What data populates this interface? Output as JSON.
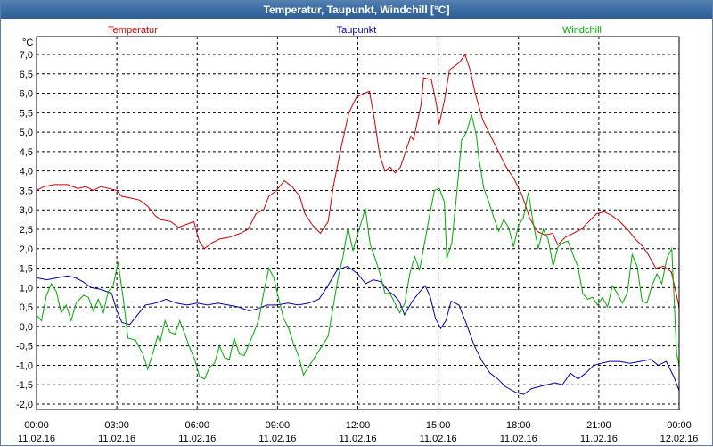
{
  "window": {
    "title": "Temperatur, Taupunkt, Windchill [°C]"
  },
  "chart_data": {
    "type": "line",
    "title": "Temperatur, Taupunkt, Windchill [°C]",
    "ylabel": "°C",
    "ylim": [
      -2.0,
      7.0
    ],
    "ytick_step": 0.5,
    "ytick_labels": [
      "7,0",
      "6,5",
      "6,0",
      "5,5",
      "5,0",
      "4,5",
      "4,0",
      "3,5",
      "3,0",
      "2,5",
      "2,0",
      "1,5",
      "1,0",
      "0,5",
      "0,0",
      "-0,5",
      "-1,0",
      "-1,5",
      "-2,0"
    ],
    "xlim_hours": [
      0,
      24
    ],
    "x_ticks": [
      {
        "time": "00:00",
        "date": "11.02.16"
      },
      {
        "time": "03:00",
        "date": "11.02.16"
      },
      {
        "time": "06:00",
        "date": "11.02.16"
      },
      {
        "time": "09:00",
        "date": "11.02.16"
      },
      {
        "time": "12:00",
        "date": "11.02.16"
      },
      {
        "time": "15:00",
        "date": "11.02.16"
      },
      {
        "time": "18:00",
        "date": "11.02.16"
      },
      {
        "time": "21:00",
        "date": "11.02.16"
      },
      {
        "time": "00:00",
        "date": "12.02.16"
      }
    ],
    "grid": true,
    "legend_position": "top",
    "series": [
      {
        "name": "Temperatur",
        "color": "#cc0000",
        "points": [
          [
            0.0,
            3.5
          ],
          [
            0.3,
            3.6
          ],
          [
            0.7,
            3.65
          ],
          [
            1.2,
            3.65
          ],
          [
            1.6,
            3.55
          ],
          [
            1.9,
            3.6
          ],
          [
            2.2,
            3.5
          ],
          [
            2.5,
            3.6
          ],
          [
            2.8,
            3.55
          ],
          [
            3.1,
            3.5
          ],
          [
            3.3,
            3.35
          ],
          [
            3.7,
            3.3
          ],
          [
            4.0,
            3.25
          ],
          [
            4.3,
            3.1
          ],
          [
            4.6,
            2.85
          ],
          [
            4.8,
            2.75
          ],
          [
            5.2,
            2.7
          ],
          [
            5.5,
            2.55
          ],
          [
            5.9,
            2.65
          ],
          [
            6.1,
            2.7
          ],
          [
            6.3,
            2.2
          ],
          [
            6.5,
            2.0
          ],
          [
            6.8,
            2.15
          ],
          [
            7.1,
            2.25
          ],
          [
            7.5,
            2.3
          ],
          [
            7.9,
            2.4
          ],
          [
            8.2,
            2.5
          ],
          [
            8.5,
            2.9
          ],
          [
            8.8,
            3.0
          ],
          [
            9.0,
            3.35
          ],
          [
            9.3,
            3.5
          ],
          [
            9.6,
            3.75
          ],
          [
            9.9,
            3.6
          ],
          [
            10.2,
            3.35
          ],
          [
            10.4,
            2.9
          ],
          [
            10.7,
            2.6
          ],
          [
            11.0,
            2.4
          ],
          [
            11.3,
            2.7
          ],
          [
            11.5,
            3.6
          ],
          [
            11.8,
            4.6
          ],
          [
            12.1,
            5.5
          ],
          [
            12.4,
            5.9
          ],
          [
            12.7,
            6.0
          ],
          [
            12.9,
            6.05
          ],
          [
            13.1,
            5.3
          ],
          [
            13.3,
            4.4
          ],
          [
            13.5,
            4.0
          ],
          [
            13.7,
            4.1
          ],
          [
            13.9,
            3.95
          ],
          [
            14.1,
            4.1
          ],
          [
            14.3,
            4.5
          ],
          [
            14.5,
            4.9
          ],
          [
            14.6,
            4.8
          ],
          [
            14.9,
            5.7
          ],
          [
            15.0,
            6.4
          ],
          [
            15.3,
            6.35
          ],
          [
            15.5,
            5.7
          ],
          [
            15.6,
            5.2
          ],
          [
            15.8,
            5.8
          ],
          [
            16.0,
            6.6
          ],
          [
            16.4,
            6.8
          ],
          [
            16.6,
            7.0
          ],
          [
            16.8,
            6.6
          ],
          [
            17.0,
            6.0
          ],
          [
            17.3,
            5.3
          ],
          [
            17.6,
            4.9
          ],
          [
            17.9,
            4.5
          ],
          [
            18.2,
            4.1
          ],
          [
            18.5,
            3.8
          ],
          [
            18.8,
            3.4
          ],
          [
            19.1,
            2.8
          ],
          [
            19.4,
            2.45
          ],
          [
            19.7,
            2.35
          ],
          [
            20.0,
            2.4
          ],
          [
            20.2,
            2.1
          ],
          [
            20.5,
            2.3
          ],
          [
            20.8,
            2.4
          ],
          [
            21.1,
            2.5
          ],
          [
            21.4,
            2.7
          ],
          [
            21.7,
            2.9
          ],
          [
            22.0,
            2.95
          ],
          [
            22.3,
            2.85
          ],
          [
            22.6,
            2.7
          ],
          [
            22.9,
            2.5
          ],
          [
            23.2,
            2.25
          ],
          [
            23.5,
            2.05
          ],
          [
            23.7,
            1.85
          ],
          [
            24.0,
            1.5
          ],
          [
            24.3,
            1.55
          ],
          [
            24.6,
            1.4
          ],
          [
            24.9,
            0.5
          ]
        ]
      },
      {
        "name": "Taupunkt",
        "color": "#0000aa",
        "points": [
          [
            0.0,
            1.25
          ],
          [
            0.4,
            1.2
          ],
          [
            0.8,
            1.25
          ],
          [
            1.2,
            1.3
          ],
          [
            1.5,
            1.25
          ],
          [
            1.8,
            1.15
          ],
          [
            2.1,
            1.0
          ],
          [
            2.5,
            0.95
          ],
          [
            2.9,
            0.85
          ],
          [
            3.1,
            0.4
          ],
          [
            3.3,
            0.1
          ],
          [
            3.6,
            0.05
          ],
          [
            3.9,
            0.3
          ],
          [
            4.2,
            0.55
          ],
          [
            4.6,
            0.6
          ],
          [
            5.0,
            0.7
          ],
          [
            5.4,
            0.6
          ],
          [
            5.8,
            0.55
          ],
          [
            6.2,
            0.6
          ],
          [
            6.6,
            0.55
          ],
          [
            7.0,
            0.6
          ],
          [
            7.4,
            0.55
          ],
          [
            7.8,
            0.5
          ],
          [
            8.2,
            0.4
          ],
          [
            8.5,
            0.45
          ],
          [
            8.9,
            0.55
          ],
          [
            9.3,
            0.55
          ],
          [
            9.7,
            0.6
          ],
          [
            10.1,
            0.55
          ],
          [
            10.5,
            0.6
          ],
          [
            10.9,
            0.7
          ],
          [
            11.2,
            1.0
          ],
          [
            11.6,
            1.45
          ],
          [
            12.0,
            1.55
          ],
          [
            12.4,
            1.35
          ],
          [
            12.7,
            1.1
          ],
          [
            13.0,
            1.2
          ],
          [
            13.3,
            1.15
          ],
          [
            13.6,
            0.9
          ],
          [
            13.8,
            0.8
          ],
          [
            14.0,
            0.65
          ],
          [
            14.2,
            0.3
          ],
          [
            14.5,
            0.65
          ],
          [
            14.8,
            0.9
          ],
          [
            15.0,
            1.05
          ],
          [
            15.2,
            0.75
          ],
          [
            15.4,
            0.2
          ],
          [
            15.6,
            -0.05
          ],
          [
            15.8,
            0.15
          ],
          [
            16.0,
            0.65
          ],
          [
            16.3,
            0.55
          ],
          [
            16.6,
            0.05
          ],
          [
            16.9,
            -0.5
          ],
          [
            17.2,
            -0.9
          ],
          [
            17.5,
            -1.2
          ],
          [
            17.8,
            -1.35
          ],
          [
            18.1,
            -1.55
          ],
          [
            18.5,
            -1.7
          ],
          [
            18.8,
            -1.75
          ],
          [
            19.1,
            -1.6
          ],
          [
            19.4,
            -1.55
          ],
          [
            19.7,
            -1.5
          ],
          [
            20.0,
            -1.45
          ],
          [
            20.3,
            -1.5
          ],
          [
            20.6,
            -1.2
          ],
          [
            20.9,
            -1.35
          ],
          [
            21.2,
            -1.2
          ],
          [
            21.5,
            -1.0
          ],
          [
            21.8,
            -0.95
          ],
          [
            22.1,
            -0.9
          ],
          [
            22.5,
            -0.9
          ],
          [
            22.9,
            -0.95
          ],
          [
            23.3,
            -0.9
          ],
          [
            23.7,
            -0.85
          ],
          [
            24.0,
            -1.0
          ],
          [
            24.3,
            -0.9
          ],
          [
            24.6,
            -1.3
          ],
          [
            24.8,
            -1.65
          ]
        ]
      },
      {
        "name": "Windchill",
        "color": "#00aa00",
        "points": [
          [
            0.0,
            0.3
          ],
          [
            0.2,
            0.15
          ],
          [
            0.4,
            0.8
          ],
          [
            0.6,
            1.1
          ],
          [
            0.8,
            0.9
          ],
          [
            1.0,
            0.35
          ],
          [
            1.2,
            0.55
          ],
          [
            1.4,
            0.15
          ],
          [
            1.6,
            0.6
          ],
          [
            1.9,
            0.8
          ],
          [
            2.1,
            0.75
          ],
          [
            2.3,
            0.4
          ],
          [
            2.5,
            0.7
          ],
          [
            2.7,
            0.35
          ],
          [
            2.9,
            0.9
          ],
          [
            3.1,
            1.05
          ],
          [
            3.3,
            1.65
          ],
          [
            3.5,
            0.75
          ],
          [
            3.7,
            -0.3
          ],
          [
            4.0,
            -0.35
          ],
          [
            4.3,
            -0.7
          ],
          [
            4.5,
            -1.1
          ],
          [
            4.7,
            -0.7
          ],
          [
            4.9,
            -0.25
          ],
          [
            5.0,
            -0.4
          ],
          [
            5.2,
            0.15
          ],
          [
            5.4,
            -0.15
          ],
          [
            5.6,
            -0.2
          ],
          [
            5.8,
            0.15
          ],
          [
            6.0,
            -0.2
          ],
          [
            6.2,
            -0.55
          ],
          [
            6.4,
            -0.85
          ],
          [
            6.6,
            -1.3
          ],
          [
            6.8,
            -1.35
          ],
          [
            7.0,
            -1.05
          ],
          [
            7.2,
            -0.95
          ],
          [
            7.4,
            -0.5
          ],
          [
            7.6,
            -0.8
          ],
          [
            7.8,
            -0.85
          ],
          [
            8.0,
            -0.3
          ],
          [
            8.2,
            -0.7
          ],
          [
            8.4,
            -0.75
          ],
          [
            8.6,
            -0.45
          ],
          [
            8.8,
            -0.15
          ],
          [
            9.0,
            0.2
          ],
          [
            9.2,
            0.9
          ],
          [
            9.4,
            1.5
          ],
          [
            9.6,
            1.25
          ],
          [
            9.8,
            0.7
          ],
          [
            10.0,
            0.2
          ],
          [
            10.2,
            -0.05
          ],
          [
            10.4,
            -0.45
          ],
          [
            10.6,
            -0.75
          ],
          [
            10.8,
            -1.25
          ],
          [
            11.0,
            -1.05
          ],
          [
            11.2,
            -0.85
          ],
          [
            11.5,
            -0.55
          ],
          [
            11.8,
            -0.25
          ],
          [
            12.0,
            0.5
          ],
          [
            12.2,
            1.25
          ],
          [
            12.4,
            1.8
          ],
          [
            12.6,
            2.55
          ],
          [
            12.8,
            1.95
          ],
          [
            13.0,
            2.4
          ],
          [
            13.2,
            2.8
          ],
          [
            13.3,
            3.05
          ],
          [
            13.5,
            2.1
          ],
          [
            13.7,
            1.75
          ],
          [
            13.9,
            1.35
          ],
          [
            14.1,
            0.85
          ],
          [
            14.3,
            0.85
          ],
          [
            14.5,
            0.6
          ],
          [
            14.7,
            0.35
          ],
          [
            14.9,
            0.6
          ],
          [
            15.1,
            1.35
          ],
          [
            15.3,
            1.8
          ],
          [
            15.5,
            1.45
          ],
          [
            15.7,
            2.15
          ],
          [
            15.9,
            2.85
          ],
          [
            16.1,
            3.5
          ],
          [
            16.3,
            3.55
          ],
          [
            16.5,
            3.2
          ],
          [
            16.6,
            1.75
          ],
          [
            16.8,
            2.15
          ],
          [
            17.0,
            3.4
          ],
          [
            17.2,
            4.8
          ],
          [
            17.4,
            5.0
          ],
          [
            17.6,
            5.45
          ],
          [
            17.8,
            4.9
          ],
          [
            17.9,
            4.3
          ],
          [
            18.1,
            3.55
          ],
          [
            18.3,
            3.2
          ],
          [
            18.5,
            2.8
          ],
          [
            18.7,
            2.45
          ],
          [
            18.9,
            2.75
          ],
          [
            19.1,
            2.55
          ],
          [
            19.3,
            2.05
          ],
          [
            19.5,
            2.6
          ],
          [
            19.7,
            2.8
          ],
          [
            19.9,
            3.45
          ],
          [
            20.1,
            2.65
          ],
          [
            20.3,
            2.0
          ],
          [
            20.5,
            2.5
          ],
          [
            20.7,
            2.25
          ],
          [
            20.9,
            1.55
          ],
          [
            21.1,
            2.05
          ],
          [
            21.3,
            2.15
          ],
          [
            21.5,
            2.2
          ],
          [
            21.7,
            1.85
          ],
          [
            21.9,
            1.55
          ],
          [
            22.1,
            0.85
          ],
          [
            22.3,
            0.7
          ],
          [
            22.5,
            0.75
          ],
          [
            22.7,
            0.55
          ],
          [
            22.9,
            0.75
          ],
          [
            23.1,
            0.5
          ],
          [
            23.3,
            1.05
          ],
          [
            23.5,
            0.85
          ],
          [
            23.7,
            0.6
          ],
          [
            23.9,
            0.85
          ],
          [
            24.1,
            1.85
          ],
          [
            24.3,
            1.55
          ],
          [
            24.5,
            0.65
          ],
          [
            24.7,
            0.6
          ],
          [
            24.9,
            1.05
          ],
          [
            25.1,
            1.35
          ],
          [
            25.3,
            1.1
          ],
          [
            25.5,
            1.75
          ],
          [
            25.7,
            2.0
          ],
          [
            25.8,
            0.65
          ],
          [
            25.9,
            -0.7
          ],
          [
            26.0,
            -1.0
          ]
        ]
      }
    ]
  }
}
